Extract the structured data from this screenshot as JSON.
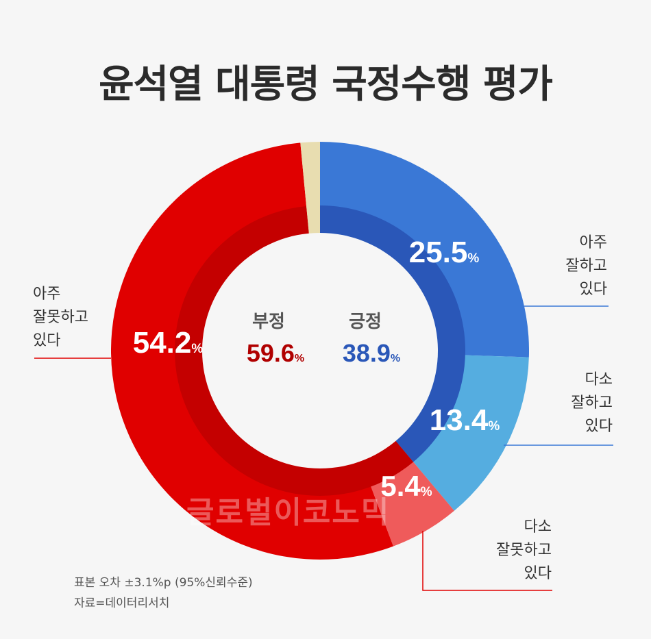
{
  "title": "윤석열 대통령 국정수행 평가",
  "chart_data": {
    "type": "donut",
    "outer_ring": [
      {
        "label": "아주 잘하고 있다",
        "value": 25.5,
        "color": "#3a78d6"
      },
      {
        "label": "다소 잘하고 있다",
        "value": 13.4,
        "color": "#55ade0"
      },
      {
        "label": "다소 잘못하고 있다",
        "value": 5.4,
        "color": "#ef5b5b"
      },
      {
        "label": "아주 잘못하고 있다",
        "value": 54.2,
        "color": "#e00000"
      },
      {
        "label": "",
        "value": 1.5,
        "color": "#e8ddb0"
      }
    ],
    "inner_ring": [
      {
        "label": "긍정",
        "value": 38.9,
        "color": "#2a57b8"
      },
      {
        "label": "부정",
        "value": 59.6,
        "color": "#c40000"
      },
      {
        "label": "",
        "value": 1.5,
        "color": "#e8ddb0"
      }
    ],
    "percent_sign": "%"
  },
  "labels": {
    "very_good": [
      "아주",
      "잘하고",
      "있다"
    ],
    "somewhat_good": [
      "다소",
      "잘하고",
      "있다"
    ],
    "somewhat_bad": [
      "다소",
      "잘못하고",
      "있다"
    ],
    "very_bad": [
      "아주",
      "잘못하고",
      "있다"
    ]
  },
  "center": {
    "negative_label": "부정",
    "negative_value": "59.6",
    "positive_label": "긍정",
    "positive_value": "38.9"
  },
  "watermark": "글로벌이코노믹",
  "footer": {
    "margin": "표본 오차 ±3.1%p (95%신뢰수준)",
    "source": "자료=데이터리서치"
  },
  "colors": {
    "positive_text": "#2a57b8",
    "negative_text": "#b00000",
    "blue_line": "#3a78d6",
    "red_line": "#e00000"
  }
}
